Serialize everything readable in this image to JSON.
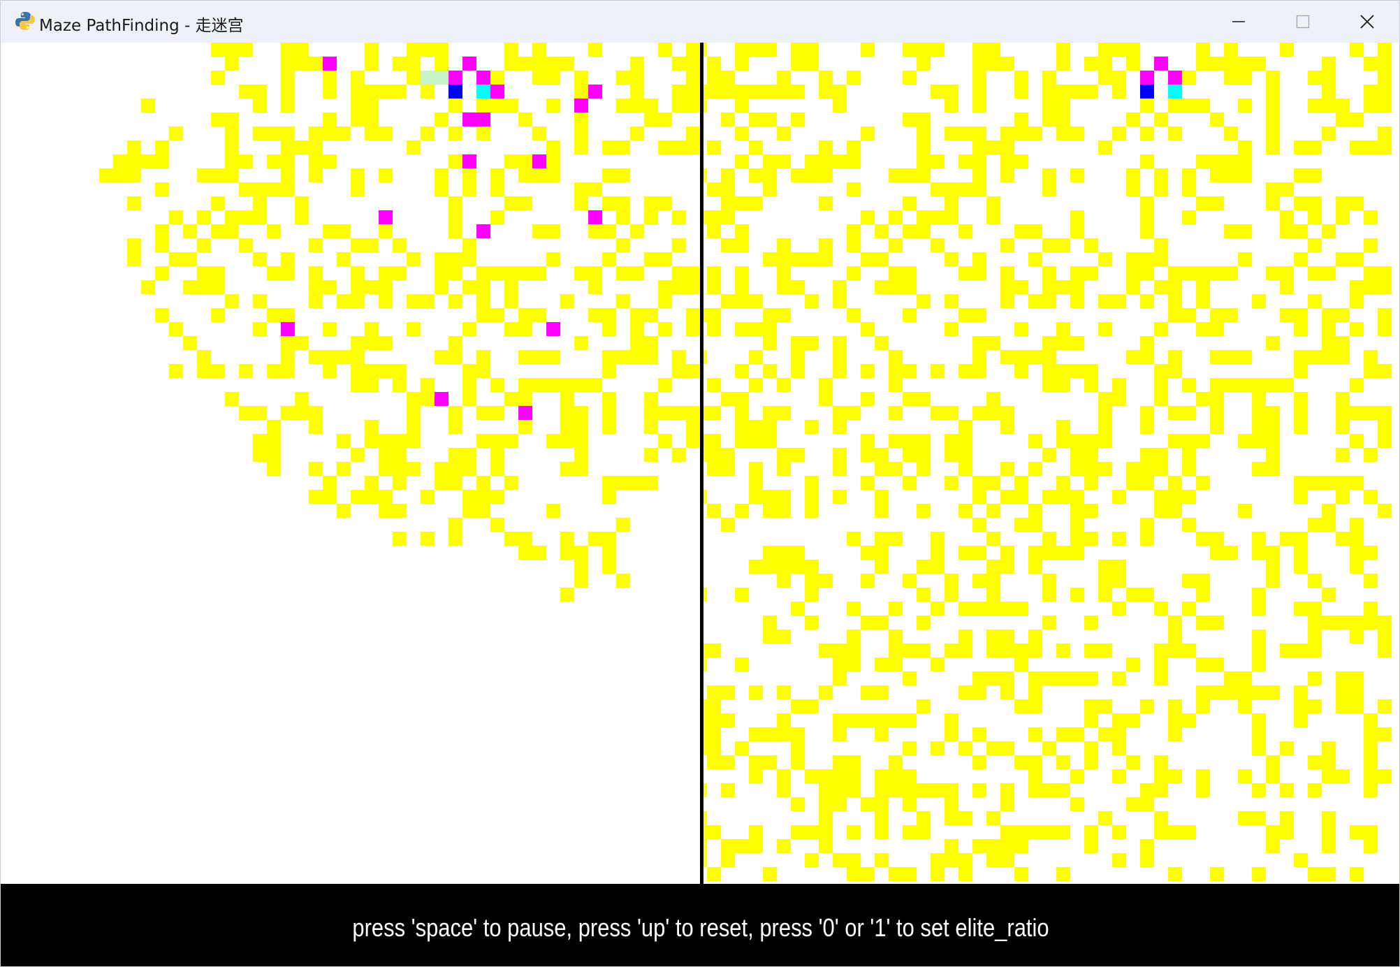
{
  "window": {
    "title": "Maze PathFinding - 走迷宫",
    "app_icon": "python-icon",
    "controls": [
      "minimize-icon",
      "maximize-icon",
      "close-icon"
    ]
  },
  "status_bar": {
    "text": "press 'space' to pause, press 'up' to reset, press '0' or '1' to set elite_ratio"
  },
  "colors": {
    "wall": "#ffff00",
    "open": "#ffffff",
    "explored_agent": "#ff00ff",
    "current_position": "#0000ff",
    "target": "#00ffff",
    "visited_trail": "#c8f5c8",
    "divider": "#000000",
    "status_background": "#000000",
    "status_text": "#ffffff"
  },
  "maze": {
    "columns": 50,
    "rows": 60
  },
  "panels": [
    {
      "name": "left-maze-panel",
      "fog_of_war": true,
      "agents": [
        [
          33,
          1
        ],
        [
          23,
          1
        ],
        [
          32,
          2
        ],
        [
          34,
          2
        ],
        [
          35,
          3
        ],
        [
          42,
          3
        ],
        [
          41,
          4
        ],
        [
          33,
          5
        ],
        [
          34,
          5
        ],
        [
          33,
          8
        ],
        [
          38,
          8
        ],
        [
          27,
          12
        ],
        [
          42,
          12
        ],
        [
          34,
          13
        ],
        [
          20,
          20
        ],
        [
          39,
          20
        ],
        [
          31,
          25
        ],
        [
          37,
          26
        ]
      ],
      "current": [
        32,
        3
      ],
      "target": [
        34,
        3
      ],
      "trail": [
        [
          30,
          2
        ],
        [
          31,
          2
        ]
      ]
    },
    {
      "name": "right-maze-panel",
      "fog_of_war": false,
      "agents": [
        [
          33,
          1
        ],
        [
          32,
          2
        ],
        [
          34,
          2
        ]
      ],
      "current": [
        32,
        3
      ],
      "target": [
        34,
        3
      ],
      "trail": []
    }
  ]
}
